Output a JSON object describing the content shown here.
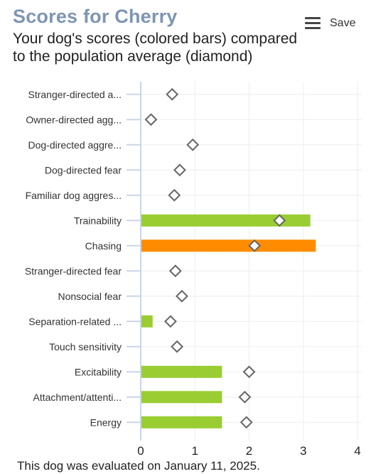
{
  "header": {
    "title": "Scores for Cherry",
    "subtitle": "Your dog's scores (colored bars) compared to the population average (diamond)",
    "save_label": "Save",
    "menu_icon": "hamburger-menu-icon"
  },
  "footer": {
    "text": "This dog was evaluated on January 11, 2025."
  },
  "chart_data": {
    "type": "bar",
    "orientation": "horizontal",
    "categories": [
      "Stranger-directed a...",
      "Owner-directed agg...",
      "Dog-directed aggre...",
      "Dog-directed fear",
      "Familiar dog aggres...",
      "Trainability",
      "Chasing",
      "Stranger-directed fear",
      "Nonsocial fear",
      "Separation-related ...",
      "Touch sensitivity",
      "Excitability",
      "Attachment/attenti...",
      "Energy"
    ],
    "series": [
      {
        "values": [
          0,
          0,
          0,
          0,
          0,
          3.13,
          3.23,
          0,
          0,
          0.22,
          0,
          1.5,
          1.5,
          1.5
        ],
        "colors": [
          "#9acd32",
          "#9acd32",
          "#9acd32",
          "#9acd32",
          "#9acd32",
          "#9acd32",
          "#ff8c00",
          "#9acd32",
          "#9acd32",
          "#9acd32",
          "#9acd32",
          "#9acd32",
          "#9acd32",
          "#9acd32"
        ]
      },
      {
        "marker": "diamond",
        "values": [
          0.58,
          0.19,
          0.96,
          0.72,
          0.62,
          2.56,
          2.1,
          0.64,
          0.76,
          0.55,
          0.67,
          2.0,
          1.92,
          1.95
        ]
      }
    ],
    "xlim": [
      0,
      4
    ],
    "xticks": [
      "0",
      "1",
      "2",
      "3",
      "4"
    ],
    "grid": true,
    "legend": "none"
  }
}
